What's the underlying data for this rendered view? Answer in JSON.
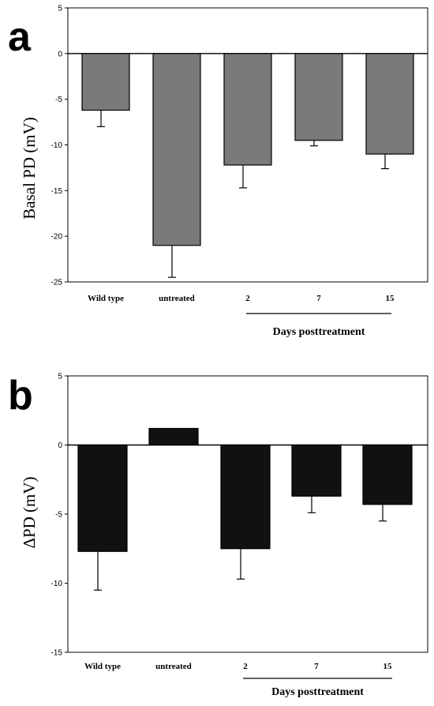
{
  "chart_data": [
    {
      "panel_letter": "a",
      "type": "bar",
      "ylabel": "Basal PD (mV)",
      "ylim": [
        -25,
        5
      ],
      "yticks": [
        5,
        0,
        -5,
        -10,
        -15,
        -20,
        -25
      ],
      "ytick_labels": [
        "5",
        "0",
        "-5",
        "-10",
        "-15",
        "-20",
        "-25"
      ],
      "categories": [
        "Wild type",
        "untreated",
        "2",
        "7",
        "15"
      ],
      "values": [
        -6.2,
        -21.0,
        -12.2,
        -9.5,
        -11.0
      ],
      "errors": [
        1.8,
        3.5,
        2.5,
        0.6,
        1.6
      ],
      "bar_color": "#7a7a7a",
      "group_label": "Days  posttreatment",
      "group_categories": [
        "2",
        "7",
        "15"
      ]
    },
    {
      "panel_letter": "b",
      "type": "bar",
      "ylabel": "ΔPD (mV)",
      "ylim": [
        -15,
        5
      ],
      "yticks": [
        5,
        0,
        -5,
        -10,
        -15
      ],
      "ytick_labels": [
        "5",
        "0",
        "-5",
        "-10",
        "-15"
      ],
      "categories": [
        "Wild type",
        "untreated",
        "2",
        "7",
        "15"
      ],
      "values": [
        -7.7,
        1.2,
        -7.5,
        -3.7,
        -4.3
      ],
      "errors": [
        2.8,
        0,
        2.2,
        1.2,
        1.2
      ],
      "bar_color": "#111111",
      "group_label": "Days  posttreatment",
      "group_categories": [
        "2",
        "7",
        "15"
      ]
    }
  ]
}
